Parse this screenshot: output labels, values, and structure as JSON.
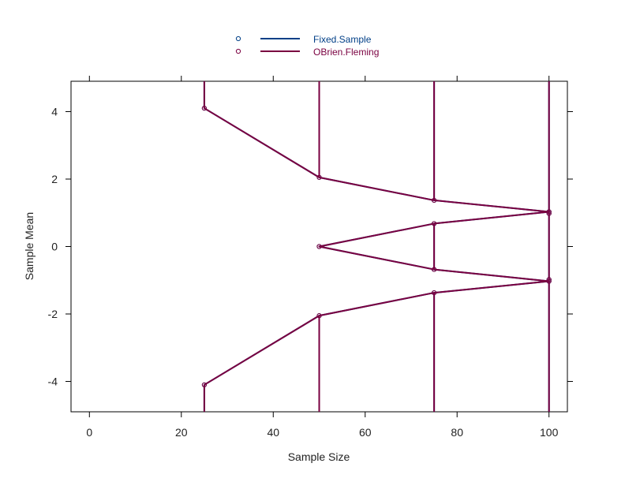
{
  "chart_data": {
    "type": "line",
    "xlabel": "Sample Size",
    "ylabel": "Sample Mean",
    "xlim": [
      -4,
      104
    ],
    "ylim": [
      -4.9,
      4.9
    ],
    "x_ticks": [
      0,
      20,
      40,
      60,
      80,
      100
    ],
    "y_ticks": [
      -4,
      -2,
      0,
      2,
      4
    ],
    "grid": false,
    "legend_position": "top-center",
    "series": [
      {
        "name": "Fixed.Sample",
        "color": "#003f87",
        "marker": "open-circle",
        "lines": [
          [
            [
              25,
              4.9
            ],
            [
              25,
              4.1
            ],
            [
              50,
              2.05
            ],
            [
              75,
              1.37
            ],
            [
              100,
              1.03
            ],
            [
              75,
              0.68
            ],
            [
              50,
              0.0
            ],
            [
              75,
              -0.68
            ],
            [
              100,
              -1.03
            ],
            [
              75,
              -1.37
            ],
            [
              50,
              -2.05
            ],
            [
              25,
              -4.1
            ],
            [
              25,
              -4.9
            ]
          ],
          [
            [
              50,
              4.9
            ],
            [
              50,
              2.05
            ]
          ],
          [
            [
              50,
              -2.05
            ],
            [
              50,
              -4.9
            ]
          ],
          [
            [
              75,
              4.9
            ],
            [
              75,
              1.37
            ]
          ],
          [
            [
              75,
              0.68
            ],
            [
              75,
              -0.68
            ]
          ],
          [
            [
              75,
              -1.37
            ],
            [
              75,
              -4.9
            ]
          ],
          [
            [
              100,
              4.9
            ],
            [
              100,
              -4.9
            ]
          ]
        ],
        "points": [
          [
            25,
            4.1
          ],
          [
            50,
            2.05
          ],
          [
            75,
            1.37
          ],
          [
            100,
            1.03
          ],
          [
            75,
            0.68
          ],
          [
            50,
            0.0
          ],
          [
            75,
            -0.68
          ],
          [
            100,
            -1.03
          ],
          [
            75,
            -1.37
          ],
          [
            50,
            -2.05
          ],
          [
            25,
            -4.1
          ],
          [
            100,
            0.98
          ],
          [
            100,
            -0.98
          ]
        ]
      },
      {
        "name": "OBrien.Fleming",
        "color": "#7a0040",
        "marker": "open-circle",
        "lines": [
          [
            [
              25,
              4.9
            ],
            [
              25,
              4.1
            ],
            [
              50,
              2.05
            ],
            [
              75,
              1.37
            ],
            [
              100,
              1.03
            ],
            [
              75,
              0.68
            ],
            [
              50,
              0.0
            ],
            [
              75,
              -0.68
            ],
            [
              100,
              -1.03
            ],
            [
              75,
              -1.37
            ],
            [
              50,
              -2.05
            ],
            [
              25,
              -4.1
            ],
            [
              25,
              -4.9
            ]
          ],
          [
            [
              50,
              4.9
            ],
            [
              50,
              2.05
            ]
          ],
          [
            [
              50,
              -2.05
            ],
            [
              50,
              -4.9
            ]
          ],
          [
            [
              75,
              4.9
            ],
            [
              75,
              1.37
            ]
          ],
          [
            [
              75,
              0.68
            ],
            [
              75,
              -0.68
            ]
          ],
          [
            [
              75,
              -1.37
            ],
            [
              75,
              -4.9
            ]
          ],
          [
            [
              100,
              4.9
            ],
            [
              100,
              -4.9
            ]
          ]
        ],
        "points": [
          [
            25,
            4.1
          ],
          [
            50,
            2.05
          ],
          [
            75,
            1.37
          ],
          [
            100,
            1.03
          ],
          [
            75,
            0.68
          ],
          [
            50,
            0.0
          ],
          [
            75,
            -0.68
          ],
          [
            100,
            -1.03
          ],
          [
            75,
            -1.37
          ],
          [
            50,
            -2.05
          ],
          [
            25,
            -4.1
          ],
          [
            100,
            0.98
          ],
          [
            100,
            -0.98
          ]
        ]
      }
    ]
  }
}
